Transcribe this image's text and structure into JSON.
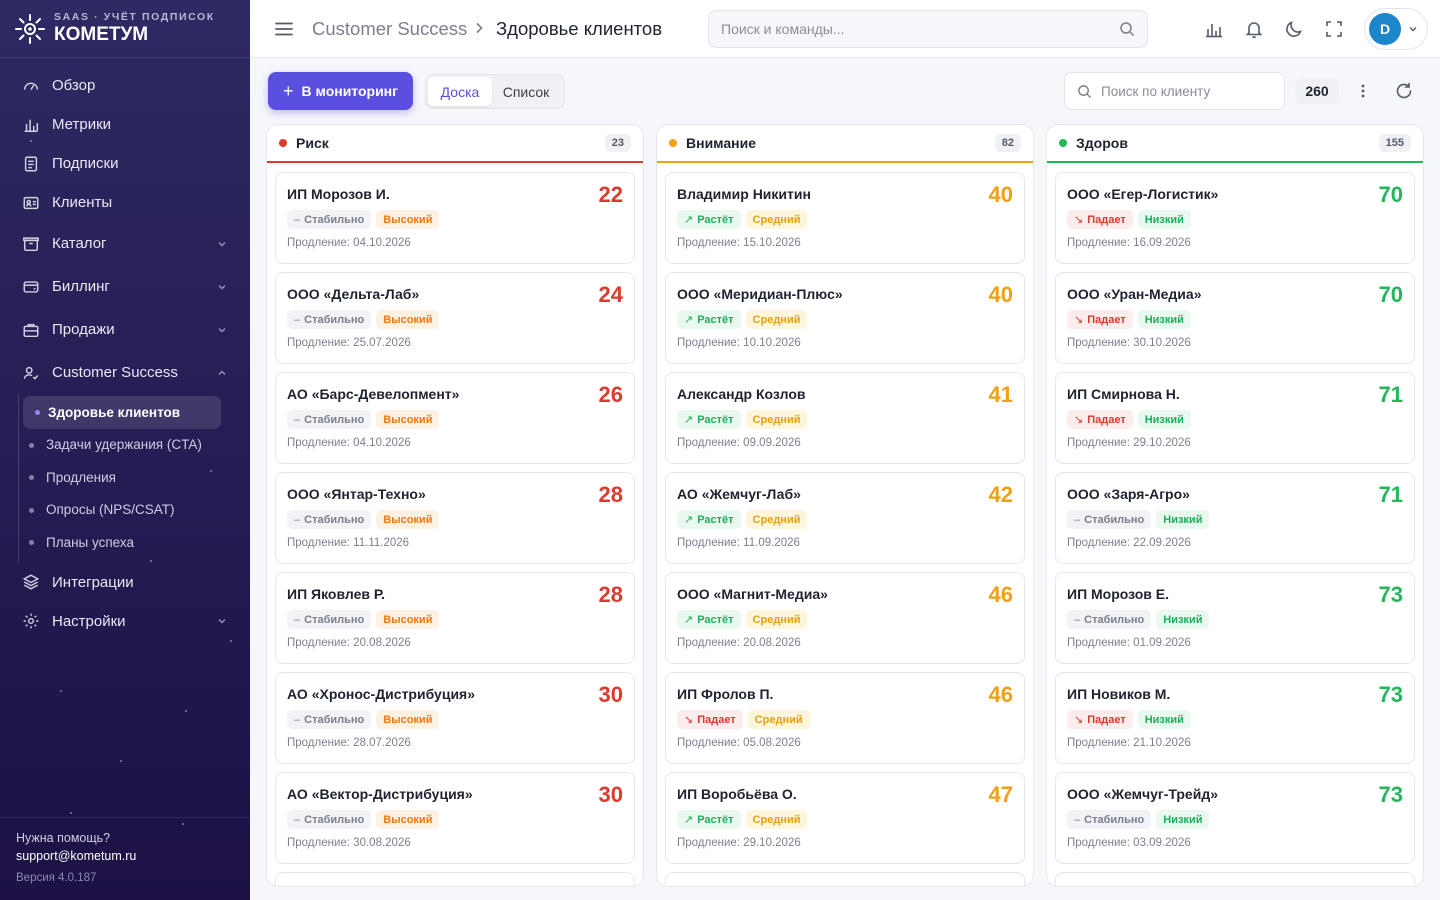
{
  "sidebar": {
    "brand_sub": "SAAS · УЧЁТ ПОДПИСОК",
    "brand_name": "КОМЕТУМ",
    "items": [
      {
        "label": "Обзор",
        "icon": "gauge-icon"
      },
      {
        "label": "Метрики",
        "icon": "bar-chart-icon"
      },
      {
        "label": "Подписки",
        "icon": "document-icon"
      },
      {
        "label": "Клиенты",
        "icon": "id-card-icon"
      },
      {
        "label": "Каталог",
        "icon": "box-icon"
      },
      {
        "label": "Биллинг",
        "icon": "wallet-icon"
      },
      {
        "label": "Продажи",
        "icon": "briefcase-icon"
      },
      {
        "label": "Customer Success",
        "icon": "user-check-icon"
      },
      {
        "label": "Интеграции",
        "icon": "layers-icon"
      },
      {
        "label": "Настройки",
        "icon": "gear-icon"
      }
    ],
    "submenu": [
      {
        "label": "Здоровье клиентов",
        "active": true
      },
      {
        "label": "Задачи удержания (CTA)"
      },
      {
        "label": "Продления"
      },
      {
        "label": "Опросы (NPS/CSAT)"
      },
      {
        "label": "Планы успеха"
      }
    ],
    "footer": {
      "help": "Нужна помощь?",
      "email": "support@kometum.ru",
      "version": "Версия 4.0.187"
    }
  },
  "header": {
    "breadcrumb_parent": "Customer Success",
    "breadcrumb_current": "Здоровье клиентов",
    "search_placeholder": "Поиск и команды...",
    "avatar_initial": "D"
  },
  "toolbar": {
    "monitor_button": "В мониторинг",
    "view_board": "Доска",
    "view_list": "Список",
    "client_search_placeholder": "Поиск по клиенту",
    "total_count": "260"
  },
  "colors": {
    "accent": "#5b4fdf",
    "risk": "#dc3a2c",
    "attention": "#f0a012",
    "healthy": "#22b85a"
  },
  "columns": [
    {
      "title": "Риск",
      "count": "23",
      "color": "#dc3a2c",
      "cards": [
        {
          "name": "ИП Морозов И.",
          "score": "22",
          "trend": "Стабильно",
          "trend_type": "flat",
          "risk": "Высокий",
          "risk_type": "high",
          "renewal": "Продление: 04.10.2026"
        },
        {
          "name": "ООО «Дельта-Лаб»",
          "score": "24",
          "trend": "Стабильно",
          "trend_type": "flat",
          "risk": "Высокий",
          "risk_type": "high",
          "renewal": "Продление: 25.07.2026"
        },
        {
          "name": "АО «Барс-Девелопмент»",
          "score": "26",
          "trend": "Стабильно",
          "trend_type": "flat",
          "risk": "Высокий",
          "risk_type": "high",
          "renewal": "Продление: 04.10.2026"
        },
        {
          "name": "ООО «Янтар-Техно»",
          "score": "28",
          "trend": "Стабильно",
          "trend_type": "flat",
          "risk": "Высокий",
          "risk_type": "high",
          "renewal": "Продление: 11.11.2026"
        },
        {
          "name": "ИП Яковлев Р.",
          "score": "28",
          "trend": "Стабильно",
          "trend_type": "flat",
          "risk": "Высокий",
          "risk_type": "high",
          "renewal": "Продление: 20.08.2026"
        },
        {
          "name": "АО «Хронос-Дистрибуция»",
          "score": "30",
          "trend": "Стабильно",
          "trend_type": "flat",
          "risk": "Высокий",
          "risk_type": "high",
          "renewal": "Продление: 28.07.2026"
        },
        {
          "name": "АО «Вектор-Дистрибуция»",
          "score": "30",
          "trend": "Стабильно",
          "trend_type": "flat",
          "risk": "Высокий",
          "risk_type": "high",
          "renewal": "Продление: 30.08.2026"
        }
      ]
    },
    {
      "title": "Внимание",
      "count": "82",
      "color": "#f0a012",
      "cards": [
        {
          "name": "Владимир Никитин",
          "score": "40",
          "trend": "Растёт",
          "trend_type": "up",
          "risk": "Средний",
          "risk_type": "med",
          "renewal": "Продление: 15.10.2026"
        },
        {
          "name": "ООО «Меридиан-Плюс»",
          "score": "40",
          "trend": "Растёт",
          "trend_type": "up",
          "risk": "Средний",
          "risk_type": "med",
          "renewal": "Продление: 10.10.2026"
        },
        {
          "name": "Александр Козлов",
          "score": "41",
          "trend": "Растёт",
          "trend_type": "up",
          "risk": "Средний",
          "risk_type": "med",
          "renewal": "Продление: 09.09.2026"
        },
        {
          "name": "АО «Жемчуг-Лаб»",
          "score": "42",
          "trend": "Растёт",
          "trend_type": "up",
          "risk": "Средний",
          "risk_type": "med",
          "renewal": "Продление: 11.09.2026"
        },
        {
          "name": "ООО «Магнит-Медиа»",
          "score": "46",
          "trend": "Растёт",
          "trend_type": "up",
          "risk": "Средний",
          "risk_type": "med",
          "renewal": "Продление: 20.08.2026"
        },
        {
          "name": "ИП Фролов П.",
          "score": "46",
          "trend": "Падает",
          "trend_type": "down",
          "risk": "Средний",
          "risk_type": "med",
          "renewal": "Продление: 05.08.2026"
        },
        {
          "name": "ИП Воробьёва О.",
          "score": "47",
          "trend": "Растёт",
          "trend_type": "up",
          "risk": "Средний",
          "risk_type": "med",
          "renewal": "Продление: 29.10.2026"
        }
      ]
    },
    {
      "title": "Здоров",
      "count": "155",
      "color": "#22b85a",
      "cards": [
        {
          "name": "ООО «Егер-Логистик»",
          "score": "70",
          "trend": "Падает",
          "trend_type": "down",
          "risk": "Низкий",
          "risk_type": "low",
          "renewal": "Продление: 16.09.2026"
        },
        {
          "name": "ООО «Уран-Медиа»",
          "score": "70",
          "trend": "Падает",
          "trend_type": "down",
          "risk": "Низкий",
          "risk_type": "low",
          "renewal": "Продление: 30.10.2026"
        },
        {
          "name": "ИП Смирнова Н.",
          "score": "71",
          "trend": "Падает",
          "trend_type": "down",
          "risk": "Низкий",
          "risk_type": "low",
          "renewal": "Продление: 29.10.2026"
        },
        {
          "name": "ООО «Заря-Агро»",
          "score": "71",
          "trend": "Стабильно",
          "trend_type": "flat",
          "risk": "Низкий",
          "risk_type": "low",
          "renewal": "Продление: 22.09.2026"
        },
        {
          "name": "ИП Морозов Е.",
          "score": "73",
          "trend": "Стабильно",
          "trend_type": "flat",
          "risk": "Низкий",
          "risk_type": "low",
          "renewal": "Продление: 01.09.2026"
        },
        {
          "name": "ИП Новиков М.",
          "score": "73",
          "trend": "Падает",
          "trend_type": "down",
          "risk": "Низкий",
          "risk_type": "low",
          "renewal": "Продление: 21.10.2026"
        },
        {
          "name": "ООО «Жемчуг-Трейд»",
          "score": "73",
          "trend": "Стабильно",
          "trend_type": "flat",
          "risk": "Низкий",
          "risk_type": "low",
          "renewal": "Продление: 03.09.2026"
        }
      ]
    }
  ]
}
